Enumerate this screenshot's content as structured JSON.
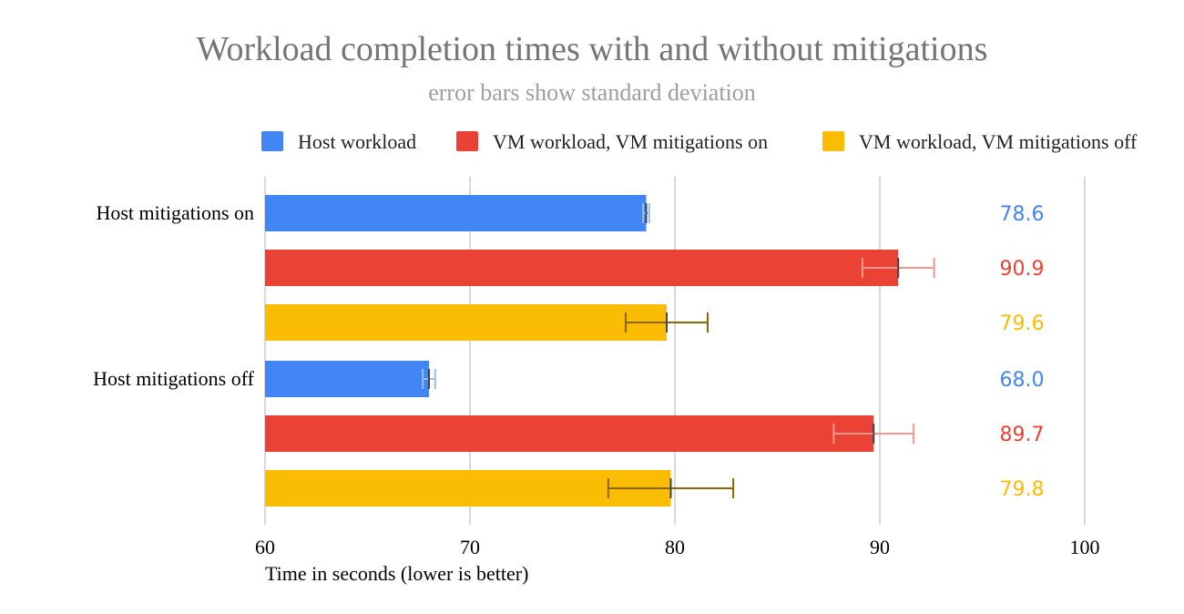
{
  "chart_data": {
    "type": "bar",
    "orientation": "horizontal",
    "title": "Workload completion times with and without mitigations",
    "subtitle": "error bars show standard deviation",
    "xlabel": "Time in seconds (lower is better)",
    "ylabel": "",
    "xlim": [
      60,
      100
    ],
    "xticks": [
      "60",
      "70",
      "80",
      "90",
      "100"
    ],
    "grid": true,
    "legend_position": "top",
    "categories": [
      "Host mitigations on",
      "Host mitigations off"
    ],
    "series": [
      {
        "name": "Host workload",
        "color": "#4285f4",
        "values": [
          78.6,
          68.0
        ],
        "labels": [
          "78.6",
          "68.0"
        ],
        "std_dev": [
          0.15,
          0.3
        ]
      },
      {
        "name": "VM workload, VM mitigations on",
        "color": "#ea4335",
        "values": [
          90.9,
          89.7
        ],
        "labels": [
          "90.9",
          "89.7"
        ],
        "std_dev": [
          1.75,
          1.95
        ]
      },
      {
        "name": "VM workload, VM mitigations off",
        "color": "#fbbc04",
        "values": [
          79.6,
          79.8
        ],
        "labels": [
          "79.6",
          "79.8"
        ],
        "std_dev": [
          2.0,
          3.05
        ]
      }
    ]
  }
}
